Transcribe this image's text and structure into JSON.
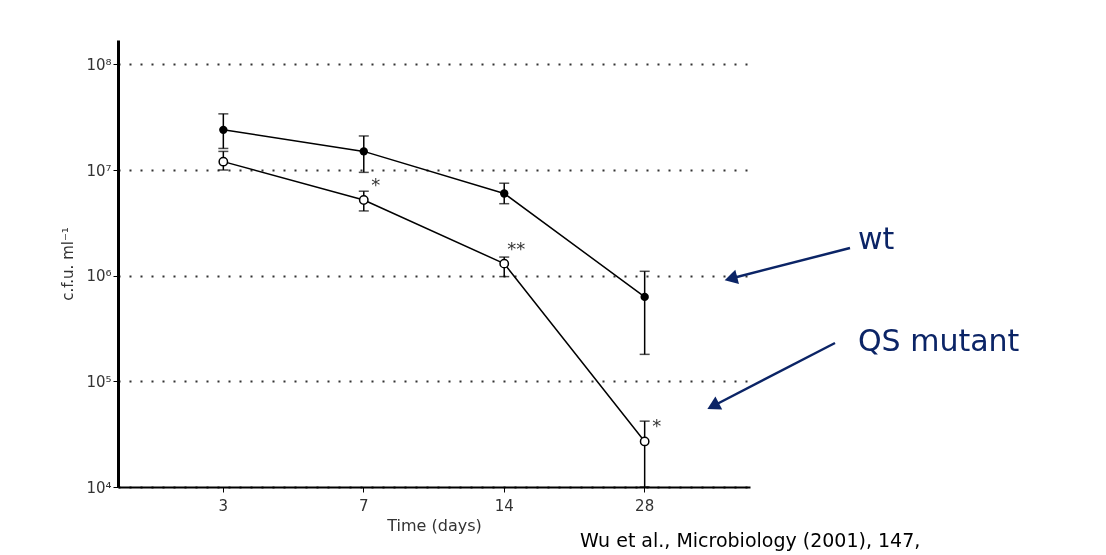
{
  "chart_data": {
    "type": "line",
    "xlabel": "Time (days)",
    "ylabel": "c.f.u. ml⁻¹",
    "categories": [
      "3",
      "7",
      "14",
      "28"
    ],
    "series": [
      {
        "name": "wt",
        "color": "#000000",
        "marker": "circle",
        "values": [
          24000000,
          15000000,
          6000000,
          630000
        ],
        "errors": [
          [
            16000000,
            34000000
          ],
          [
            9500000,
            21000000
          ],
          [
            4800000,
            7500000
          ],
          [
            180000,
            1100000
          ]
        ]
      },
      {
        "name": "QS mutant",
        "color": "#000000",
        "marker": "open circle",
        "values": [
          12000000,
          5200000,
          1300000,
          27000
        ],
        "errors": [
          [
            10000000,
            15000000
          ],
          [
            4100000,
            6300000
          ],
          [
            980000,
            1500000
          ],
          [
            10000,
            42000
          ]
        ]
      }
    ],
    "log": "y",
    "ylim": [
      10000,
      170000000
    ],
    "yticks": [
      {
        "value": 10000,
        "label": "10⁴"
      },
      {
        "value": 100000,
        "label": "10⁵"
      },
      {
        "value": 1000000,
        "label": "10⁶"
      },
      {
        "value": 10000000,
        "label": "10⁷"
      },
      {
        "value": 100000000,
        "label": "10⁸"
      }
    ],
    "grid": "y",
    "line_style": "solid",
    "annotations": [
      {
        "text": "*",
        "x": "7",
        "y": 5200000
      },
      {
        "text": "**",
        "x": "14",
        "y": 1300000
      },
      {
        "text": "*",
        "x": "28",
        "y": 27000
      },
      "Wu et al., Microbiology (2001), 147,"
    ]
  }
}
